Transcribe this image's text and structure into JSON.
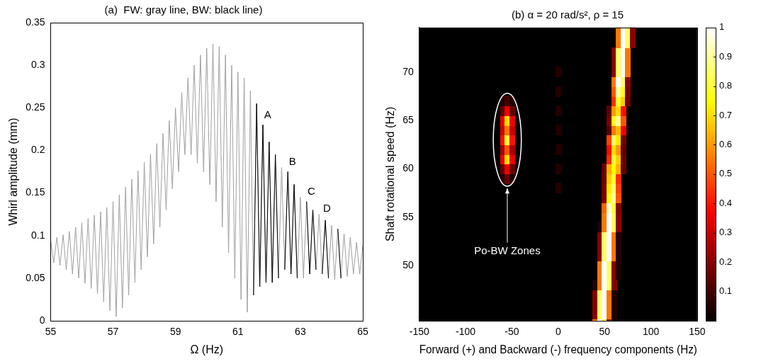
{
  "chart_data": [
    {
      "type": "line",
      "title": "(a)  FW: gray line, BW: black line)",
      "x_label": "Ω (Hz)",
      "y_label": "Whirl amplitude (mm)",
      "xlim": [
        55,
        65
      ],
      "xticks": [
        55,
        57,
        59,
        61,
        63,
        65
      ],
      "ylim": [
        0,
        0.35
      ],
      "yticks": [
        0,
        0.05,
        0.1,
        0.15,
        0.2,
        0.25,
        0.3,
        0.35
      ],
      "x": [
        55.0,
        55.1,
        55.2,
        55.3,
        55.4,
        55.5,
        55.6,
        55.7,
        55.8,
        55.9,
        56.0,
        56.1,
        56.2,
        56.3,
        56.4,
        56.5,
        56.6,
        56.7,
        56.8,
        56.9,
        57.0,
        57.1,
        57.2,
        57.3,
        57.4,
        57.5,
        57.6,
        57.7,
        57.8,
        57.9,
        58.0,
        58.1,
        58.2,
        58.3,
        58.4,
        58.5,
        58.6,
        58.7,
        58.8,
        58.9,
        59.0,
        59.1,
        59.2,
        59.3,
        59.4,
        59.5,
        59.6,
        59.7,
        59.8,
        59.9,
        60.0,
        60.1,
        60.2,
        60.3,
        60.4,
        60.5,
        60.6,
        60.7,
        60.8,
        60.9,
        61.0,
        61.1,
        61.2,
        61.3,
        61.4,
        61.5,
        61.6,
        61.7,
        61.8,
        61.9,
        62.0,
        62.1,
        62.2,
        62.3,
        62.4,
        62.5,
        62.6,
        62.7,
        62.8,
        62.9,
        63.0,
        63.1,
        63.2,
        63.3,
        63.4,
        63.5,
        63.6,
        63.7,
        63.8,
        63.9,
        64.0,
        64.1,
        64.2,
        64.3,
        64.4,
        64.5,
        64.6,
        64.7,
        64.8,
        64.9,
        65.0
      ],
      "series": [
        {
          "name": "FW",
          "color": "#a0a0a0",
          "marker": "none",
          "line_style": "solid",
          "values": [
            0.095,
            0.068,
            0.098,
            0.065,
            0.101,
            0.06,
            0.105,
            0.055,
            0.11,
            0.05,
            0.115,
            0.044,
            0.12,
            0.038,
            0.124,
            0.032,
            0.128,
            0.022,
            0.133,
            0.012,
            0.14,
            0.005,
            0.148,
            0.015,
            0.157,
            0.03,
            0.166,
            0.045,
            0.176,
            0.06,
            0.186,
            0.075,
            0.196,
            0.09,
            0.208,
            0.11,
            0.22,
            0.13,
            0.235,
            0.155,
            0.25,
            0.175,
            0.268,
            0.195,
            0.285,
            0.195,
            0.3,
            0.185,
            0.312,
            0.175,
            0.32,
            0.16,
            0.325,
            0.14,
            0.322,
            0.11,
            0.312,
            0.08,
            0.3,
            0.05,
            0.292,
            0.025,
            0.285,
            0.01,
            0.27,
            0.03,
            0.255,
            0.04,
            0.23,
            0.045,
            0.21,
            0.045,
            0.195,
            0.05,
            0.18,
            0.06,
            0.175,
            0.055,
            0.16,
            0.05,
            0.145,
            0.05,
            0.14,
            0.055,
            0.13,
            0.06,
            0.125,
            0.055,
            0.118,
            0.05,
            0.112,
            0.048,
            0.108,
            0.05,
            0.102,
            0.052,
            0.098,
            0.055,
            0.092,
            0.055,
            0.088
          ]
        },
        {
          "name": "BW",
          "color": "#000000",
          "marker": "none",
          "line_style": "solid",
          "values": [
            null,
            null,
            null,
            null,
            null,
            null,
            null,
            null,
            null,
            null,
            null,
            null,
            null,
            null,
            null,
            null,
            null,
            null,
            null,
            null,
            null,
            null,
            null,
            null,
            null,
            null,
            null,
            null,
            null,
            null,
            null,
            null,
            null,
            null,
            null,
            null,
            null,
            null,
            null,
            null,
            null,
            null,
            null,
            null,
            null,
            null,
            null,
            null,
            null,
            null,
            null,
            null,
            null,
            null,
            null,
            null,
            null,
            null,
            null,
            null,
            null,
            null,
            null,
            null,
            null,
            0.03,
            0.255,
            0.04,
            0.23,
            0.045,
            0.21,
            0.045,
            0.195,
            0.05,
            null,
            0.06,
            0.175,
            0.055,
            0.16,
            0.05,
            null,
            null,
            0.14,
            0.055,
            0.13,
            0.06,
            null,
            0.055,
            0.118,
            0.05,
            null,
            null,
            0.108,
            0.05,
            null,
            null,
            null,
            null,
            null,
            null,
            null
          ]
        }
      ],
      "annotations": [
        {
          "text": "A",
          "x": 61.95,
          "y": 0.235
        },
        {
          "text": "B",
          "x": 62.75,
          "y": 0.18
        },
        {
          "text": "C",
          "x": 63.35,
          "y": 0.145
        },
        {
          "text": "D",
          "x": 63.85,
          "y": 0.125
        }
      ]
    },
    {
      "type": "heatmap",
      "title": "(b) α = 20 rad/s², ρ = 15",
      "x_label": "Forward (+) and Backward (-) frequency components (Hz)",
      "y_label": "Shaft rotational speed (Hz)",
      "xlim": [
        -150,
        150
      ],
      "xticks": [
        -150,
        -100,
        -50,
        0,
        50,
        100,
        150
      ],
      "ylim": [
        44.3,
        74.6
      ],
      "yticks": [
        50,
        55,
        60,
        65,
        70
      ],
      "cell_width": 5,
      "cell_height": 1,
      "cells": [
        {
          "y": 44,
          "x_start": 40,
          "values": [
            0.55,
            1,
            0.85,
            0.2
          ]
        },
        {
          "y": 45,
          "x_start": 40,
          "values": [
            0.2,
            0.85,
            1,
            0.55,
            0.05
          ]
        },
        {
          "y": 46,
          "x_start": 40,
          "values": [
            0.2,
            0.85,
            1,
            0.55,
            0.05
          ]
        },
        {
          "y": 47,
          "x_start": 40,
          "values": [
            0.2,
            0.85,
            1,
            0.55,
            0.05
          ]
        },
        {
          "y": 48,
          "x_start": 40,
          "values": [
            0.05,
            0.55,
            1,
            0.85,
            0.2
          ]
        },
        {
          "y": 49,
          "x_start": 45,
          "values": [
            0.55,
            1,
            0.85,
            0.2,
            0.05
          ]
        },
        {
          "y": 50,
          "x_start": 45,
          "values": [
            0.55,
            1,
            0.85,
            0.2,
            0.05
          ]
        },
        {
          "y": 51,
          "x_start": 45,
          "values": [
            0.2,
            0.85,
            1,
            0.55,
            0.05
          ]
        },
        {
          "y": 52,
          "x_start": 45,
          "values": [
            0.2,
            0.85,
            1,
            0.55,
            0.05
          ]
        },
        {
          "y": 53,
          "x_start": 45,
          "values": [
            0.2,
            0.85,
            1,
            0.55,
            0.05
          ]
        },
        {
          "y": 54,
          "x_start": 45,
          "values": [
            0.05,
            0.55,
            1,
            0.85,
            0.2
          ]
        },
        {
          "y": 55,
          "x_start": 50,
          "values": [
            0.55,
            1,
            0.85,
            0.2
          ]
        },
        {
          "y": 56,
          "x_start": 50,
          "values": [
            0.52,
            0.95,
            0.81,
            0.19
          ]
        },
        {
          "y": 57,
          "x_start": 50,
          "values": [
            0.18,
            0.77,
            0.9,
            0.5
          ]
        },
        {
          "y": 58,
          "x_start": 50,
          "values": [
            0.17,
            0.72,
            0.85,
            0.47
          ]
        },
        {
          "y": 59,
          "x_start": 50,
          "values": [
            0.16,
            0.68,
            0.8,
            0.44
          ]
        },
        {
          "y": 60,
          "x_start": 50,
          "values": [
            0.15,
            0.64,
            0.75,
            0.64,
            0.15
          ]
        },
        {
          "y": 61,
          "x_start": 55,
          "values": [
            0.44,
            0.8,
            0.68,
            0.16
          ]
        },
        {
          "y": 62,
          "x_start": 55,
          "values": [
            0.39,
            0.7,
            0.6,
            0.14
          ]
        },
        {
          "y": 63,
          "x_start": 55,
          "values": [
            0.47,
            0.85,
            0.72,
            0.17
          ]
        },
        {
          "y": 64,
          "x_start": 55,
          "values": [
            0.13,
            0.55,
            0.65,
            0.36
          ]
        },
        {
          "y": 65,
          "x_start": 55,
          "values": [
            0.18,
            0.77,
            0.9,
            0.5
          ]
        },
        {
          "y": 66,
          "x_start": 55,
          "values": [
            0.14,
            0.6,
            0.7,
            0.39
          ]
        },
        {
          "y": 67,
          "x_start": 60,
          "values": [
            0.44,
            0.8,
            0.68,
            0.16
          ]
        },
        {
          "y": 68,
          "x_start": 60,
          "values": [
            0.5,
            0.9,
            0.77,
            0.18
          ]
        },
        {
          "y": 69,
          "x_start": 60,
          "values": [
            0.55,
            1,
            0.85,
            0.2
          ]
        },
        {
          "y": 70,
          "x_start": 60,
          "values": [
            0.2,
            0.85,
            1,
            0.55
          ]
        },
        {
          "y": 71,
          "x_start": 60,
          "values": [
            0.2,
            0.85,
            1,
            0.55
          ]
        },
        {
          "y": 72,
          "x_start": 60,
          "values": [
            0.2,
            0.85,
            1,
            0.55
          ]
        },
        {
          "y": 73,
          "x_start": 65,
          "values": [
            0.55,
            1,
            0.85,
            0.2
          ]
        },
        {
          "y": 74,
          "x_start": 65,
          "values": [
            0.55,
            1,
            0.85,
            0.2
          ]
        },
        {
          "y": 75,
          "x_start": 65,
          "values": [
            0.55,
            1,
            0.85,
            0.2
          ]
        },
        {
          "y": 59,
          "x_start": -60,
          "values": [
            0.05,
            0.15,
            0.05
          ]
        },
        {
          "y": 60,
          "x_start": -60,
          "values": [
            0.15,
            0.35,
            0.15
          ]
        },
        {
          "y": 61,
          "x_start": -60,
          "values": [
            0.35,
            0.7,
            0.35
          ]
        },
        {
          "y": 62,
          "x_start": -60,
          "values": [
            0.25,
            0.5,
            0.25
          ]
        },
        {
          "y": 63,
          "x_start": -60,
          "values": [
            0.4,
            0.8,
            0.4
          ]
        },
        {
          "y": 64,
          "x_start": -60,
          "values": [
            0.3,
            0.55,
            0.3
          ]
        },
        {
          "y": 65,
          "x_start": -60,
          "values": [
            0.35,
            0.7,
            0.35
          ]
        },
        {
          "y": 66,
          "x_start": -60,
          "values": [
            0.15,
            0.35,
            0.15
          ]
        },
        {
          "y": 67,
          "x_start": -60,
          "values": [
            0.05,
            0.1,
            0.05
          ]
        },
        {
          "y": 58,
          "x_start": 0,
          "values": [
            0.05
          ]
        },
        {
          "y": 60,
          "x_start": 0,
          "values": [
            0.05
          ]
        },
        {
          "y": 62,
          "x_start": 0,
          "values": [
            0.05
          ]
        },
        {
          "y": 64,
          "x_start": 0,
          "values": [
            0.05
          ]
        },
        {
          "y": 66,
          "x_start": 0,
          "values": [
            0.05
          ]
        },
        {
          "y": 68,
          "x_start": 0,
          "values": [
            0.05
          ]
        },
        {
          "y": 70,
          "x_start": 0,
          "values": [
            0.05
          ]
        }
      ],
      "colorbar": {
        "range": [
          0,
          1
        ],
        "ticks": [
          0.1,
          0.2,
          0.3,
          0.4,
          0.5,
          0.6,
          0.7,
          0.8,
          0.9,
          1
        ]
      },
      "annotations": [
        {
          "text": "Po-BW Zones",
          "x": -55,
          "y": 51.5
        }
      ]
    }
  ]
}
